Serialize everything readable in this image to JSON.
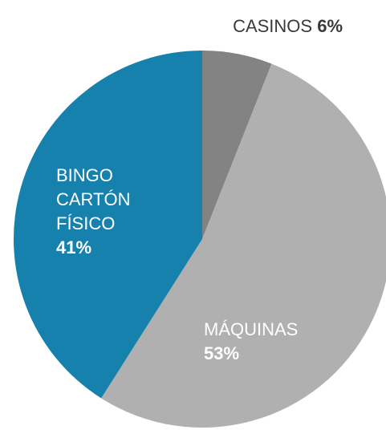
{
  "chart_data": {
    "type": "pie",
    "title": "",
    "start": "top",
    "direction": "clockwise",
    "slices": [
      {
        "label": "CASINOS",
        "lines": [
          "CASINOS"
        ],
        "value": 6,
        "value_label": "6%",
        "color": "#838383",
        "text_color": "#3a3a3a"
      },
      {
        "label": "MÁQUINAS",
        "lines": [
          "MÁQUINAS"
        ],
        "value": 53,
        "value_label": "53%",
        "color": "#b0b0b0",
        "text_color": "#ffffff"
      },
      {
        "label": "BINGO CARTÓN FÍSICO",
        "lines": [
          "BINGO",
          "CARTÓN",
          "FÍSICO"
        ],
        "value": 41,
        "value_label": "41%",
        "color": "#1681ad",
        "text_color": "#ffffff"
      }
    ]
  }
}
